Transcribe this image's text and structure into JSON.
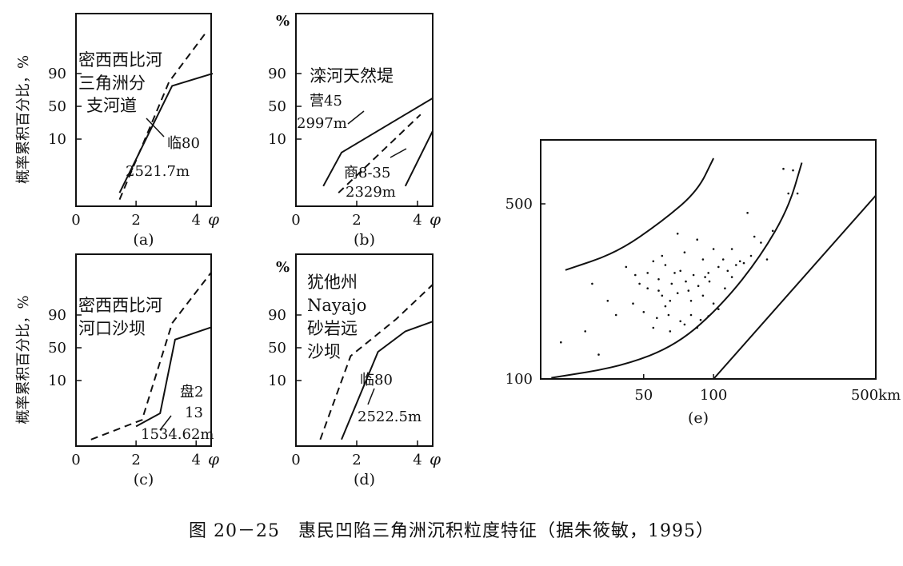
{
  "caption": "图 20－25　惠民凹陷三角洲沉积粒度特征（据朱筱敏，1995）",
  "chart_data": [
    {
      "type": "line",
      "id": "a",
      "panel_label": "(a)",
      "ylabel": "概率累积百分比，%",
      "y_unit": "",
      "xlim": [
        0,
        4.5
      ],
      "x_ticks": [
        "0",
        "2",
        "4"
      ],
      "x_unit": "φ",
      "y_ticks": [
        "10",
        "50",
        "90"
      ],
      "texts": [
        "密西西比河",
        "三角洲分",
        "支河道"
      ],
      "sample": [
        "临80",
        "2521.7m"
      ],
      "series": [
        {
          "name": "临80 2521.7m",
          "style": "solid",
          "points": [
            [
              1.45,
              2
            ],
            [
              3.2,
              75
            ],
            [
              4.55,
              90
            ]
          ]
        },
        {
          "name": "密西西比河三角洲分支河道",
          "style": "dashed",
          "points": [
            [
              1.45,
              1
            ],
            [
              3.1,
              80
            ],
            [
              4.35,
              97
            ]
          ]
        }
      ]
    },
    {
      "type": "line",
      "id": "b",
      "panel_label": "(b)",
      "ylabel": "",
      "y_unit": "%",
      "xlim": [
        0,
        4.5
      ],
      "x_ticks": [
        "0",
        "2",
        "4"
      ],
      "x_unit": "φ",
      "y_ticks": [
        "10",
        "50",
        "90"
      ],
      "texts": [
        "滦河天然堤"
      ],
      "sample_a": [
        "营45",
        "2997m"
      ],
      "sample_b": [
        "商8-35",
        "2329m"
      ],
      "series": [
        {
          "name": "营45 2997m",
          "style": "solid",
          "points": [
            [
              0.9,
              3
            ],
            [
              1.5,
              8
            ],
            [
              4.5,
              60
            ]
          ]
        },
        {
          "name": "滦河天然堤",
          "style": "dashed",
          "points": [
            [
              1.4,
              2
            ],
            [
              4.1,
              40
            ]
          ]
        },
        {
          "name": "商8-35 2329m",
          "style": "solid",
          "points": [
            [
              3.6,
              3
            ],
            [
              4.5,
              20
            ]
          ]
        }
      ]
    },
    {
      "type": "line",
      "id": "c",
      "panel_label": "(c)",
      "ylabel": "概率累积百分比，%",
      "y_unit": "",
      "xlim": [
        0,
        4.5
      ],
      "x_ticks": [
        "0",
        "2",
        "4"
      ],
      "x_unit": "φ",
      "y_ticks": [
        "10",
        "50",
        "90"
      ],
      "texts": [
        "密西西比河",
        "河口沙坝"
      ],
      "sample": [
        "盘2",
        "13",
        "1534.62m"
      ],
      "series": [
        {
          "name": "盘2 13 1534.62m",
          "style": "solid",
          "points": [
            [
              2.0,
              3
            ],
            [
              2.8,
              5
            ],
            [
              3.3,
              60
            ],
            [
              4.5,
              75
            ]
          ]
        },
        {
          "name": "密西西比河河口沙坝",
          "style": "dashed",
          "points": [
            [
              0.5,
              1
            ],
            [
              2.2,
              4
            ],
            [
              3.2,
              80
            ],
            [
              4.5,
              97
            ]
          ]
        }
      ]
    },
    {
      "type": "line",
      "id": "d",
      "panel_label": "(d)",
      "ylabel": "",
      "y_unit": "%",
      "xlim": [
        0,
        4.5
      ],
      "x_ticks": [
        "0",
        "2",
        "4"
      ],
      "x_unit": "φ",
      "y_ticks": [
        "10",
        "50",
        "90"
      ],
      "texts": [
        "犹他州",
        "Nayajo",
        "砂岩远",
        "沙坝"
      ],
      "sample": [
        "临80",
        "2522.5m"
      ],
      "series": [
        {
          "name": "临80 2522.5m",
          "style": "solid",
          "points": [
            [
              1.5,
              1
            ],
            [
              2.7,
              45
            ],
            [
              3.6,
              70
            ],
            [
              4.5,
              82
            ]
          ]
        },
        {
          "name": "犹他州Nayajo砂岩远沙坝",
          "style": "dashed",
          "points": [
            [
              0.8,
              1
            ],
            [
              1.8,
              40
            ],
            [
              3.3,
              85
            ],
            [
              4.5,
              95
            ]
          ]
        }
      ]
    },
    {
      "type": "scatter",
      "id": "e",
      "panel_label": "(e)",
      "x_scale": "log",
      "y_scale": "log",
      "xlim": [
        18,
        500
      ],
      "ylim": [
        100,
        900
      ],
      "x_ticks": [
        {
          "value": 50,
          "label": "50"
        },
        {
          "value": 100,
          "label": "100"
        },
        {
          "value": 500,
          "label": "500km"
        }
      ],
      "y_ticks": [
        {
          "value": 100,
          "label": "100"
        },
        {
          "value": 500,
          "label": "500"
        }
      ],
      "curves": [
        {
          "name": "upper-boundary",
          "points": [
            [
              23,
              272
            ],
            [
              38,
              318
            ],
            [
              60,
              425
            ],
            [
              85,
              560
            ],
            [
              100,
              760
            ]
          ]
        },
        {
          "name": "lower-boundary",
          "points": [
            [
              20,
              101
            ],
            [
              40,
              112
            ],
            [
              70,
              137
            ],
            [
              110,
              200
            ],
            [
              160,
              310
            ],
            [
              210,
              480
            ],
            [
              240,
              730
            ]
          ]
        },
        {
          "name": "diagonal-line",
          "points": [
            [
              100,
              100
            ],
            [
              500,
              540
            ]
          ]
        }
      ],
      "points": [
        [
          200,
          690
        ],
        [
          220,
          680
        ],
        [
          210,
          550
        ],
        [
          230,
          550
        ],
        [
          140,
          460
        ],
        [
          70,
          380
        ],
        [
          85,
          360
        ],
        [
          100,
          330
        ],
        [
          120,
          330
        ],
        [
          150,
          370
        ],
        [
          160,
          350
        ],
        [
          180,
          390
        ],
        [
          60,
          310
        ],
        [
          75,
          320
        ],
        [
          90,
          300
        ],
        [
          110,
          300
        ],
        [
          130,
          295
        ],
        [
          145,
          310
        ],
        [
          55,
          295
        ],
        [
          62,
          285
        ],
        [
          72,
          270
        ],
        [
          82,
          260
        ],
        [
          95,
          265
        ],
        [
          105,
          280
        ],
        [
          115,
          270
        ],
        [
          125,
          285
        ],
        [
          135,
          290
        ],
        [
          52,
          265
        ],
        [
          58,
          250
        ],
        [
          66,
          240
        ],
        [
          76,
          245
        ],
        [
          86,
          235
        ],
        [
          96,
          245
        ],
        [
          52,
          230
        ],
        [
          60,
          215
        ],
        [
          70,
          220
        ],
        [
          80,
          205
        ],
        [
          90,
          215
        ],
        [
          100,
          200
        ],
        [
          50,
          185
        ],
        [
          57,
          175
        ],
        [
          64,
          180
        ],
        [
          72,
          170
        ],
        [
          80,
          180
        ],
        [
          88,
          172
        ],
        [
          95,
          178
        ],
        [
          30,
          240
        ],
        [
          35,
          205
        ],
        [
          42,
          280
        ],
        [
          46,
          260
        ],
        [
          22,
          140
        ],
        [
          28,
          155
        ],
        [
          32,
          125
        ],
        [
          38,
          180
        ],
        [
          45,
          200
        ],
        [
          55,
          160
        ],
        [
          65,
          155
        ],
        [
          75,
          165
        ],
        [
          85,
          160
        ],
        [
          105,
          190
        ],
        [
          112,
          230
        ],
        [
          65,
          205
        ],
        [
          78,
          225
        ],
        [
          92,
          255
        ],
        [
          68,
          265
        ],
        [
          58,
          225
        ],
        [
          48,
          240
        ],
        [
          62,
          195
        ],
        [
          120,
          255
        ],
        [
          170,
          300
        ]
      ]
    }
  ]
}
